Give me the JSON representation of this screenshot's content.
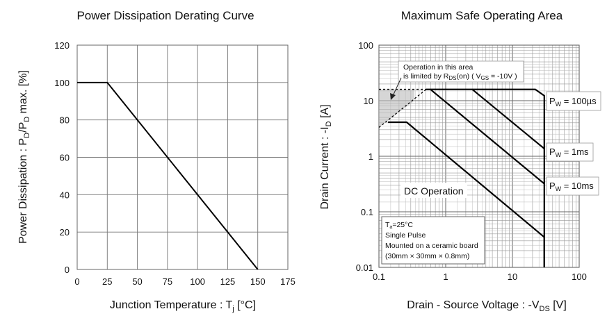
{
  "chart_data": [
    {
      "type": "line",
      "title": "Power Dissipation Derating Curve",
      "xlabel": {
        "main": "Junction Temperature : T",
        "sub": "j",
        "unit": " [°C]"
      },
      "ylabel": {
        "a": "Power Dissipation : P",
        "sub1": "D",
        "b": "/P",
        "sub2": "D",
        "c": " max. [%]"
      },
      "xlim": [
        0,
        175
      ],
      "ylim": [
        0,
        120
      ],
      "x_ticks": [
        0,
        25,
        50,
        75,
        100,
        125,
        150,
        175
      ],
      "y_ticks": [
        0,
        20,
        40,
        60,
        80,
        100,
        120
      ],
      "grid": true,
      "series": [
        {
          "x": [
            0,
            25,
            150
          ],
          "y": [
            100,
            100,
            0
          ]
        }
      ]
    },
    {
      "type": "line",
      "title": "Maximum Safe Operating Area",
      "xlabel": {
        "main": "Drain - Source Voltage : -V",
        "sub": "DS",
        "unit": " [V]"
      },
      "ylabel": {
        "main": "Drain Current : -I",
        "sub": "D",
        "unit": " [A]"
      },
      "x_scale": "log",
      "y_scale": "log",
      "xlim": [
        0.1,
        100
      ],
      "ylim": [
        0.01,
        100
      ],
      "x_ticks": [
        "0.1",
        "1",
        "10",
        "100"
      ],
      "y_ticks": [
        "0.01",
        "0.1",
        "1",
        "10",
        "100"
      ],
      "grid": true,
      "series": [
        {
          "name": "P_W = 100µs",
          "x": [
            0.51,
            22,
            30,
            30
          ],
          "y": [
            16,
            16,
            12.3,
            0.01
          ]
        },
        {
          "name": "P_W = 1ms",
          "x": [
            2.5,
            30
          ],
          "y": [
            16,
            1.37
          ]
        },
        {
          "name": "P_W = 10ms",
          "x": [
            0.59,
            30
          ],
          "y": [
            16,
            0.32
          ]
        },
        {
          "name": "DC Operation",
          "x": [
            0.137,
            0.26,
            30,
            30
          ],
          "y": [
            4.1,
            4.1,
            0.035,
            0.01
          ]
        }
      ],
      "rds_limit": {
        "x": [
          0.1,
          0.51
        ],
        "y": [
          3.3,
          16
        ],
        "style": "dashed"
      },
      "current_limit_dashed": {
        "x": [
          0.1,
          0.51
        ],
        "y": [
          16,
          16
        ]
      },
      "labels": {
        "pw100": {
          "a": "P",
          "sub": "W",
          "b": " = 100µs"
        },
        "pw1": {
          "a": "P",
          "sub": "W",
          "b": " = 1ms"
        },
        "pw10": {
          "a": "P",
          "sub": "W",
          "b": " = 10ms"
        },
        "dc": "DC Operation"
      },
      "annotation": {
        "line1": "Operation in this area",
        "line2a": "is limited by R",
        "line2sub": "DS",
        "line2b": "(on) ( V",
        "line2sub2": "GS",
        "line2c": " = -10V )"
      },
      "conditions": {
        "l1a": "T",
        "l1sub": "a",
        "l1b": "=25°C",
        "l2": "Single Pulse",
        "l3": "Mounted on a ceramic board",
        "l4": "(30mm × 30mm × 0.8mm)"
      }
    }
  ]
}
